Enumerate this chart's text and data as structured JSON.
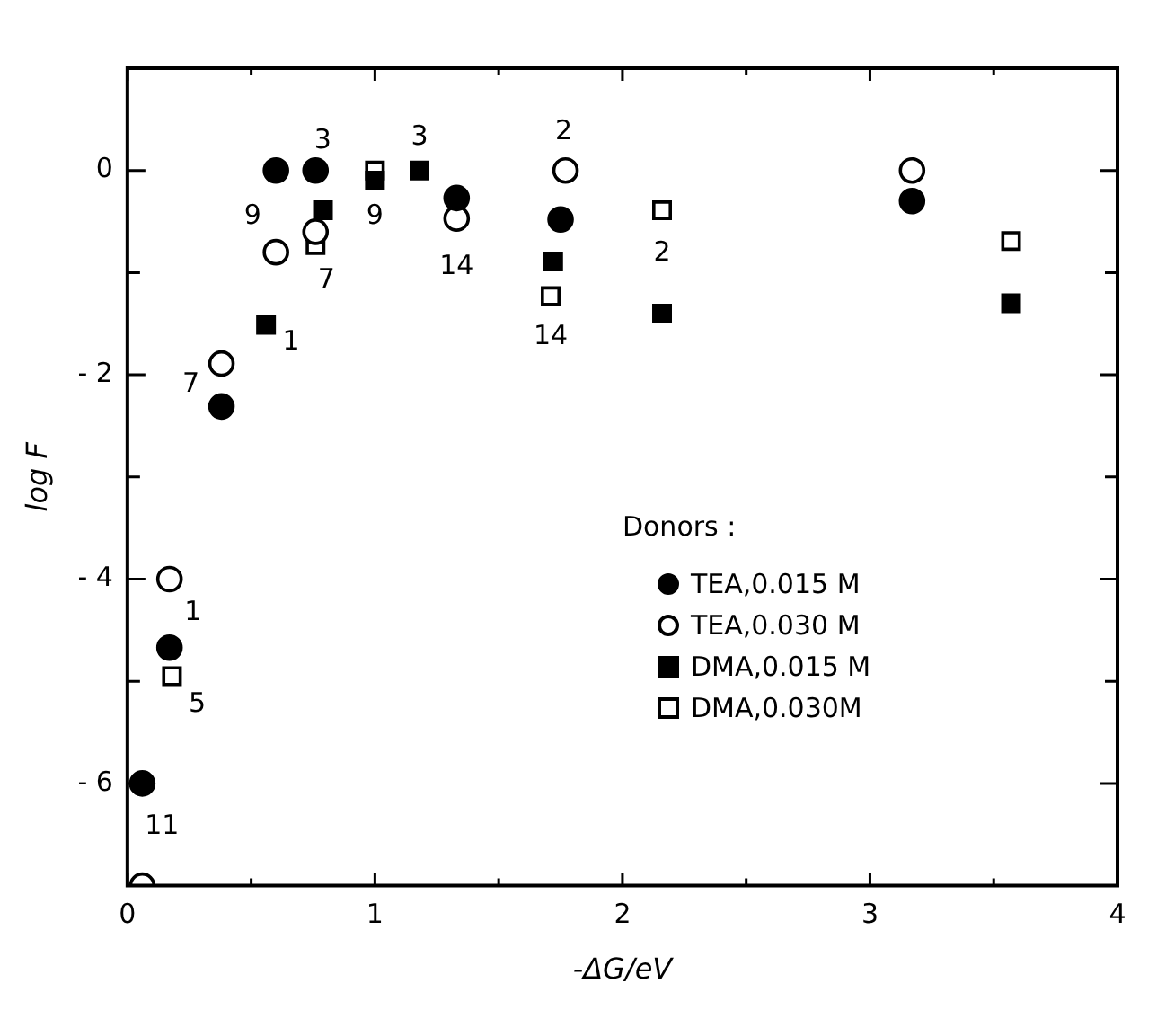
{
  "chart_data": {
    "type": "scatter",
    "xlabel": "-ΔG/eV",
    "ylabel": "log F",
    "legend_title": "Donors :",
    "legend": "right",
    "grid": false,
    "xlim": [
      0,
      4
    ],
    "xticks": [
      0,
      {
        "value": 0.5,
        "label": null
      },
      1,
      {
        "value": 1.5,
        "label": null
      },
      2,
      {
        "value": 2.5,
        "label": null
      },
      3,
      {
        "value": 3.5,
        "label": null
      },
      4
    ],
    "ylim": [
      -7,
      1
    ],
    "yticks": [
      {
        "value": -7,
        "label": null
      },
      -6,
      {
        "value": -5,
        "label": null
      },
      -4,
      {
        "value": -3,
        "label": null
      },
      -2,
      {
        "value": -1,
        "label": null
      },
      0,
      {
        "value": 1,
        "label": null
      }
    ],
    "series": [
      {
        "name": "TEA,0.015 M",
        "color": "#000000",
        "marker": "circle",
        "x": [
          0.06,
          0.17,
          0.38,
          0.6,
          0.76,
          1.33,
          1.75,
          3.17
        ],
        "values": [
          -6.0,
          -4.67,
          -2.31,
          0,
          0,
          -0.27,
          -0.48,
          -0.3
        ]
      },
      {
        "name": "TEA,0.030 M",
        "color": "#ffffff",
        "marker": "circle",
        "x": [
          0.06,
          0.17,
          0.38,
          0.6,
          0.76,
          1.33,
          1.77,
          3.17
        ],
        "values": [
          -7.0,
          -4.0,
          -1.89,
          -0.8,
          -0.6,
          -0.47,
          0,
          0
        ]
      },
      {
        "name": "DMA,0.015 M",
        "color": "#000000",
        "marker": "square",
        "x": [
          0.56,
          0.79,
          1.0,
          1.18,
          1.72,
          2.16,
          3.57
        ],
        "values": [
          -1.51,
          -0.39,
          -0.1,
          0,
          -0.89,
          -1.4,
          -1.3
        ]
      },
      {
        "name": "DMA,0.030M",
        "color": "#ffffff",
        "marker": "square",
        "x": [
          0.18,
          0.76,
          1.0,
          1.71,
          2.16,
          3.57
        ],
        "values": [
          -4.95,
          -0.73,
          0,
          -1.23,
          -0.39,
          -0.69
        ]
      }
    ],
    "annotations": [
      {
        "text": "9",
        "x": 0.6,
        "y": 0
      },
      {
        "text": "3",
        "x": 0.76,
        "y": 0
      },
      {
        "text": "9",
        "x": 1.0,
        "y": -0.1
      },
      {
        "text": "3",
        "x": 1.18,
        "y": 0
      },
      {
        "text": "14",
        "x": 1.33,
        "y": -0.47
      },
      {
        "text": "2",
        "x": 1.77,
        "y": 0
      },
      {
        "text": "7",
        "x": 0.76,
        "y": -0.73
      },
      {
        "text": "1",
        "x": 0.56,
        "y": -1.51
      },
      {
        "text": "7",
        "x": 0.38,
        "y": -1.89
      },
      {
        "text": "14",
        "x": 1.71,
        "y": -1.23
      },
      {
        "text": "2",
        "x": 2.16,
        "y": -0.39
      },
      {
        "text": "1",
        "x": 0.17,
        "y": -4.0
      },
      {
        "text": "5",
        "x": 0.18,
        "y": -4.95
      },
      {
        "text": "11",
        "x": 0.06,
        "y": -6.0
      }
    ]
  }
}
